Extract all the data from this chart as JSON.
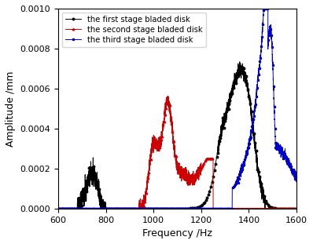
{
  "xlabel": "Frequency /Hz",
  "ylabel": "Amplitude /mm",
  "xlim": [
    600,
    1600
  ],
  "ylim": [
    0,
    0.001
  ],
  "yticks": [
    0.0,
    0.0002,
    0.0004,
    0.0006,
    0.0008,
    0.001
  ],
  "xticks": [
    600,
    800,
    1000,
    1200,
    1400,
    1600
  ],
  "legend": [
    {
      "label": "the first stage bladed disk",
      "color": "#000000",
      "marker": "o"
    },
    {
      "label": "the second stage bladed disk",
      "color": "#cc0000",
      "marker": "^"
    },
    {
      "label": "the third stage bladed disk",
      "color": "#0000cc",
      "marker": "*"
    }
  ],
  "line_colors": [
    "#000000",
    "#cc0000",
    "#0000cc"
  ],
  "figsize": [
    3.98,
    3.11
  ],
  "dpi": 100
}
